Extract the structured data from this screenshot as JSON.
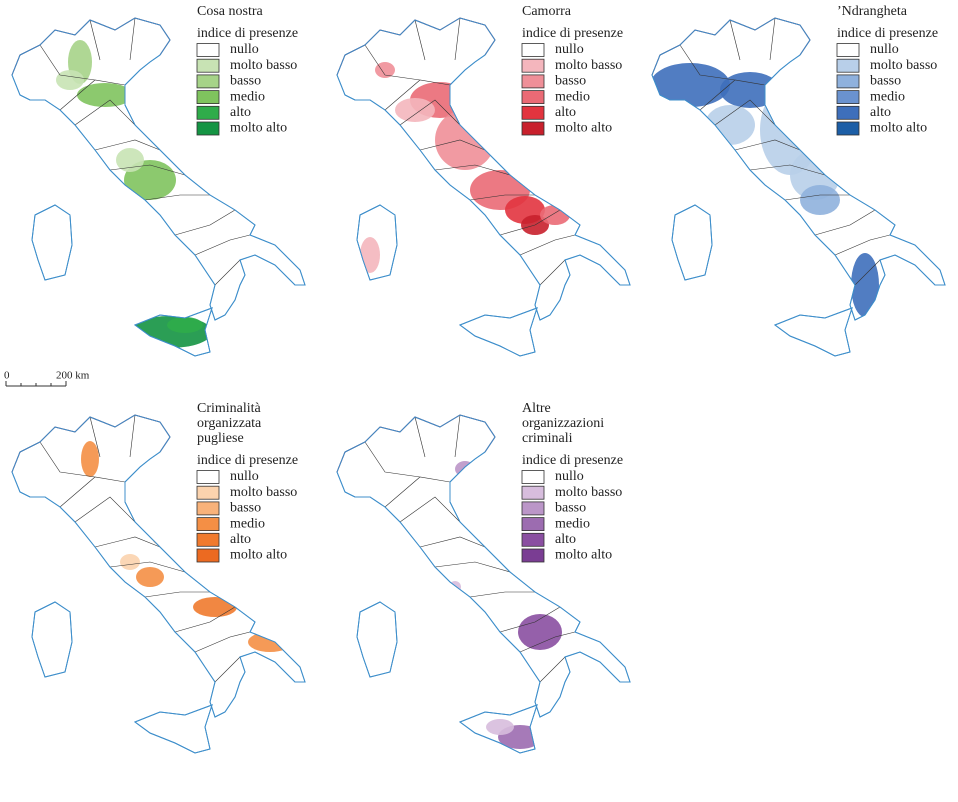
{
  "panels": [
    {
      "title_lines": [
        "Cosa nostra"
      ],
      "legend_title": "indice di presenze",
      "legend": [
        {
          "label": "nullo",
          "color": "#ffffff"
        },
        {
          "label": "molto basso",
          "color": "#c8e3b4"
        },
        {
          "label": "basso",
          "color": "#a6d388"
        },
        {
          "label": "medio",
          "color": "#7fc35e"
        },
        {
          "label": "alto",
          "color": "#2fac4a"
        },
        {
          "label": "molto alto",
          "color": "#149443"
        }
      ]
    },
    {
      "title_lines": [
        "Camorra"
      ],
      "legend_title": "indice di presenze",
      "legend": [
        {
          "label": "nullo",
          "color": "#ffffff"
        },
        {
          "label": "molto basso",
          "color": "#f4b6bd"
        },
        {
          "label": "basso",
          "color": "#ef8f98"
        },
        {
          "label": "medio",
          "color": "#ea6a75"
        },
        {
          "label": "alto",
          "color": "#e2343f"
        },
        {
          "label": "molto alto",
          "color": "#c8202c"
        }
      ]
    },
    {
      "title_lines": [
        "’Ndrangheta"
      ],
      "legend_title": "indice di presenze",
      "legend": [
        {
          "label": "nullo",
          "color": "#ffffff"
        },
        {
          "label": "molto basso",
          "color": "#b8cfe9"
        },
        {
          "label": "basso",
          "color": "#8fb1dd"
        },
        {
          "label": "medio",
          "color": "#6a92cf"
        },
        {
          "label": "alto",
          "color": "#3e6fbb"
        },
        {
          "label": "molto alto",
          "color": "#1c5ea6"
        }
      ]
    },
    {
      "title_lines": [
        "Criminalità",
        "organizzata",
        "pugliese"
      ],
      "legend_title": "indice di presenze",
      "legend": [
        {
          "label": "nullo",
          "color": "#ffffff"
        },
        {
          "label": "molto basso",
          "color": "#fbd3ae"
        },
        {
          "label": "basso",
          "color": "#f8b27a"
        },
        {
          "label": "medio",
          "color": "#f48f45"
        },
        {
          "label": "alto",
          "color": "#f07a2d"
        },
        {
          "label": "molto alto",
          "color": "#ec6a21"
        }
      ]
    },
    {
      "title_lines": [
        "Altre",
        "organizzazioni",
        "criminali"
      ],
      "legend_title": "indice di presenze",
      "legend": [
        {
          "label": "nullo",
          "color": "#ffffff"
        },
        {
          "label": "molto basso",
          "color": "#d7bddd"
        },
        {
          "label": "basso",
          "color": "#bb96c8"
        },
        {
          "label": "medio",
          "color": "#9c6cb0"
        },
        {
          "label": "alto",
          "color": "#8a4fa1"
        },
        {
          "label": "molto alto",
          "color": "#7a3d93"
        }
      ]
    }
  ],
  "scale_bar": {
    "start": "0",
    "end": "200 km"
  }
}
